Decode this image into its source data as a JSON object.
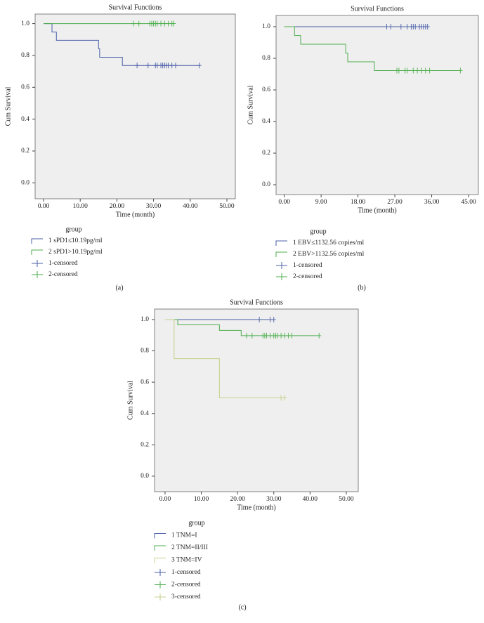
{
  "chart_data": [
    {
      "type": "step",
      "panel_label": "(a)",
      "title": "Survival Functions",
      "x_label": "Time (month)",
      "y_label": "Cum Survival",
      "legend_title": "group",
      "xlim": [
        -2.3,
        52.3
      ],
      "xticks": [
        {
          "value": 0,
          "label": "0.00"
        },
        {
          "value": 10,
          "label": "10.00"
        },
        {
          "value": 20,
          "label": "20.00"
        },
        {
          "value": 30,
          "label": "30.00"
        },
        {
          "value": 40,
          "label": "40.00"
        },
        {
          "value": 50,
          "label": "50.00"
        }
      ],
      "ylim": [
        -0.1,
        1.06
      ],
      "yticks": [
        {
          "value": 0,
          "label": "0.0"
        },
        {
          "value": 0.2,
          "label": "0.2"
        },
        {
          "value": 0.4,
          "label": "0.4"
        },
        {
          "value": 0.6,
          "label": "0.6"
        },
        {
          "value": 0.8,
          "label": "0.8"
        },
        {
          "value": 1,
          "label": "1.0"
        }
      ],
      "series": [
        {
          "name": "1 sPD1≤10.19pg/ml",
          "color": "#4a5fa8",
          "style": "step",
          "x": [
            0,
            2.3,
            3.5,
            15,
            15.3,
            21.5,
            42.5
          ],
          "values": [
            1,
            0.947,
            0.895,
            0.842,
            0.789,
            0.737,
            0.737
          ]
        },
        {
          "name": "2 sPD1>10.19pg/ml",
          "color": "#4cae4c",
          "style": "step",
          "x": [
            0,
            35.5
          ],
          "values": [
            1,
            1
          ]
        },
        {
          "name": "1-censored",
          "color": "#4a5fa8",
          "style": "censored",
          "x": [
            25.5,
            28.5,
            30.5,
            31,
            32,
            32.5,
            33,
            33.5,
            34,
            35,
            36,
            42.5
          ],
          "values": [
            0.737,
            0.737,
            0.737,
            0.737,
            0.737,
            0.737,
            0.737,
            0.737,
            0.737,
            0.737,
            0.737,
            0.737
          ]
        },
        {
          "name": "2-censored",
          "color": "#4cae4c",
          "style": "censored",
          "x": [
            24.5,
            26,
            29,
            29.5,
            30,
            30.5,
            31,
            32,
            33,
            34,
            35,
            35.5
          ],
          "values": [
            1,
            1,
            1,
            1,
            1,
            1,
            1,
            1,
            1,
            1,
            1,
            1
          ]
        }
      ]
    },
    {
      "type": "step",
      "panel_label": "(b)",
      "title": "Survival Functions",
      "x_label": "Time (month)",
      "y_label": "Cum Survival",
      "legend_title": "group",
      "xlim": [
        -2,
        47.4
      ],
      "xticks": [
        {
          "value": 0,
          "label": "0.00"
        },
        {
          "value": 9,
          "label": "9.00"
        },
        {
          "value": 18,
          "label": "18.00"
        },
        {
          "value": 27,
          "label": "27.00"
        },
        {
          "value": 36,
          "label": "36.00"
        },
        {
          "value": 45,
          "label": "45.00"
        }
      ],
      "ylim": [
        -0.062,
        1.071
      ],
      "yticks": [
        {
          "value": 0,
          "label": "0.0"
        },
        {
          "value": 0.2,
          "label": "0.2"
        },
        {
          "value": 0.4,
          "label": "0.4"
        },
        {
          "value": 0.6,
          "label": "0.6"
        },
        {
          "value": 0.8,
          "label": "0.8"
        },
        {
          "value": 1,
          "label": "1.0"
        }
      ],
      "series": [
        {
          "name": "1 EBV≤1132.56 copies/ml",
          "color": "#4a5fa8",
          "style": "step",
          "x": [
            0,
            35
          ],
          "values": [
            1,
            1
          ]
        },
        {
          "name": "2 EBV>1132.56 copies/ml",
          "color": "#4cae4c",
          "style": "step",
          "x": [
            0,
            2.5,
            4,
            15,
            15.5,
            22,
            43
          ],
          "values": [
            1,
            0.944,
            0.889,
            0.833,
            0.778,
            0.722,
            0.722
          ]
        },
        {
          "name": "1-censored",
          "color": "#4a5fa8",
          "style": "censored",
          "x": [
            25,
            26,
            28.5,
            30,
            31,
            31.5,
            32,
            33,
            33.5,
            34,
            34.5,
            35
          ],
          "values": [
            1,
            1,
            1,
            1,
            1,
            1,
            1,
            1,
            1,
            1,
            1,
            1
          ]
        },
        {
          "name": "2-censored",
          "color": "#4cae4c",
          "style": "censored",
          "x": [
            27.5,
            28,
            29.5,
            30,
            31.5,
            32.5,
            33.5,
            34.5,
            35.5,
            43
          ],
          "values": [
            0.722,
            0.722,
            0.722,
            0.722,
            0.722,
            0.722,
            0.722,
            0.722,
            0.722,
            0.722
          ]
        }
      ]
    },
    {
      "type": "step",
      "panel_label": "(c)",
      "title": "Survival Functions",
      "x_label": "Time (month)",
      "y_label": "Cum Survival",
      "legend_title": "group",
      "xlim": [
        -2.9,
        53.3
      ],
      "xticks": [
        {
          "value": 0,
          "label": "0.00"
        },
        {
          "value": 10,
          "label": "10.00"
        },
        {
          "value": 20,
          "label": "20.00"
        },
        {
          "value": 30,
          "label": "30.00"
        },
        {
          "value": 40,
          "label": "40.00"
        },
        {
          "value": 50,
          "label": "50.00"
        }
      ],
      "ylim": [
        -0.099,
        1.067
      ],
      "yticks": [
        {
          "value": 0,
          "label": "0.0"
        },
        {
          "value": 0.2,
          "label": "0.2"
        },
        {
          "value": 0.4,
          "label": "0.4"
        },
        {
          "value": 0.6,
          "label": "0.6"
        },
        {
          "value": 0.8,
          "label": "0.8"
        },
        {
          "value": 1,
          "label": "1.0"
        }
      ],
      "series": [
        {
          "name": "1 TNM=I",
          "color": "#4a5fa8",
          "style": "step",
          "x": [
            0,
            30
          ],
          "values": [
            1,
            1
          ]
        },
        {
          "name": "2 TNM=II/III",
          "color": "#4cae4c",
          "style": "step",
          "x": [
            0,
            3.5,
            15,
            21,
            42.5
          ],
          "values": [
            1,
            0.966,
            0.931,
            0.897,
            0.897
          ]
        },
        {
          "name": "3 TNM=IV",
          "color": "#c8cf8a",
          "style": "step",
          "x": [
            0,
            2.5,
            15,
            33
          ],
          "values": [
            1,
            0.75,
            0.5,
            0.5
          ]
        },
        {
          "name": "1-censored",
          "color": "#4a5fa8",
          "style": "censored",
          "x": [
            26,
            29,
            30
          ],
          "values": [
            1,
            1,
            1
          ]
        },
        {
          "name": "2-censored",
          "color": "#4cae4c",
          "style": "censored",
          "x": [
            22.5,
            24,
            27,
            27.5,
            28,
            29,
            30,
            30.5,
            31,
            32,
            33,
            34,
            35,
            42.5
          ],
          "values": [
            0.897,
            0.897,
            0.897,
            0.897,
            0.897,
            0.897,
            0.897,
            0.897,
            0.897,
            0.897,
            0.897,
            0.897,
            0.897,
            0.897
          ]
        },
        {
          "name": "3-censored",
          "color": "#c8cf8a",
          "style": "censored",
          "x": [
            32,
            33
          ],
          "values": [
            0.5,
            0.5
          ]
        }
      ]
    }
  ]
}
